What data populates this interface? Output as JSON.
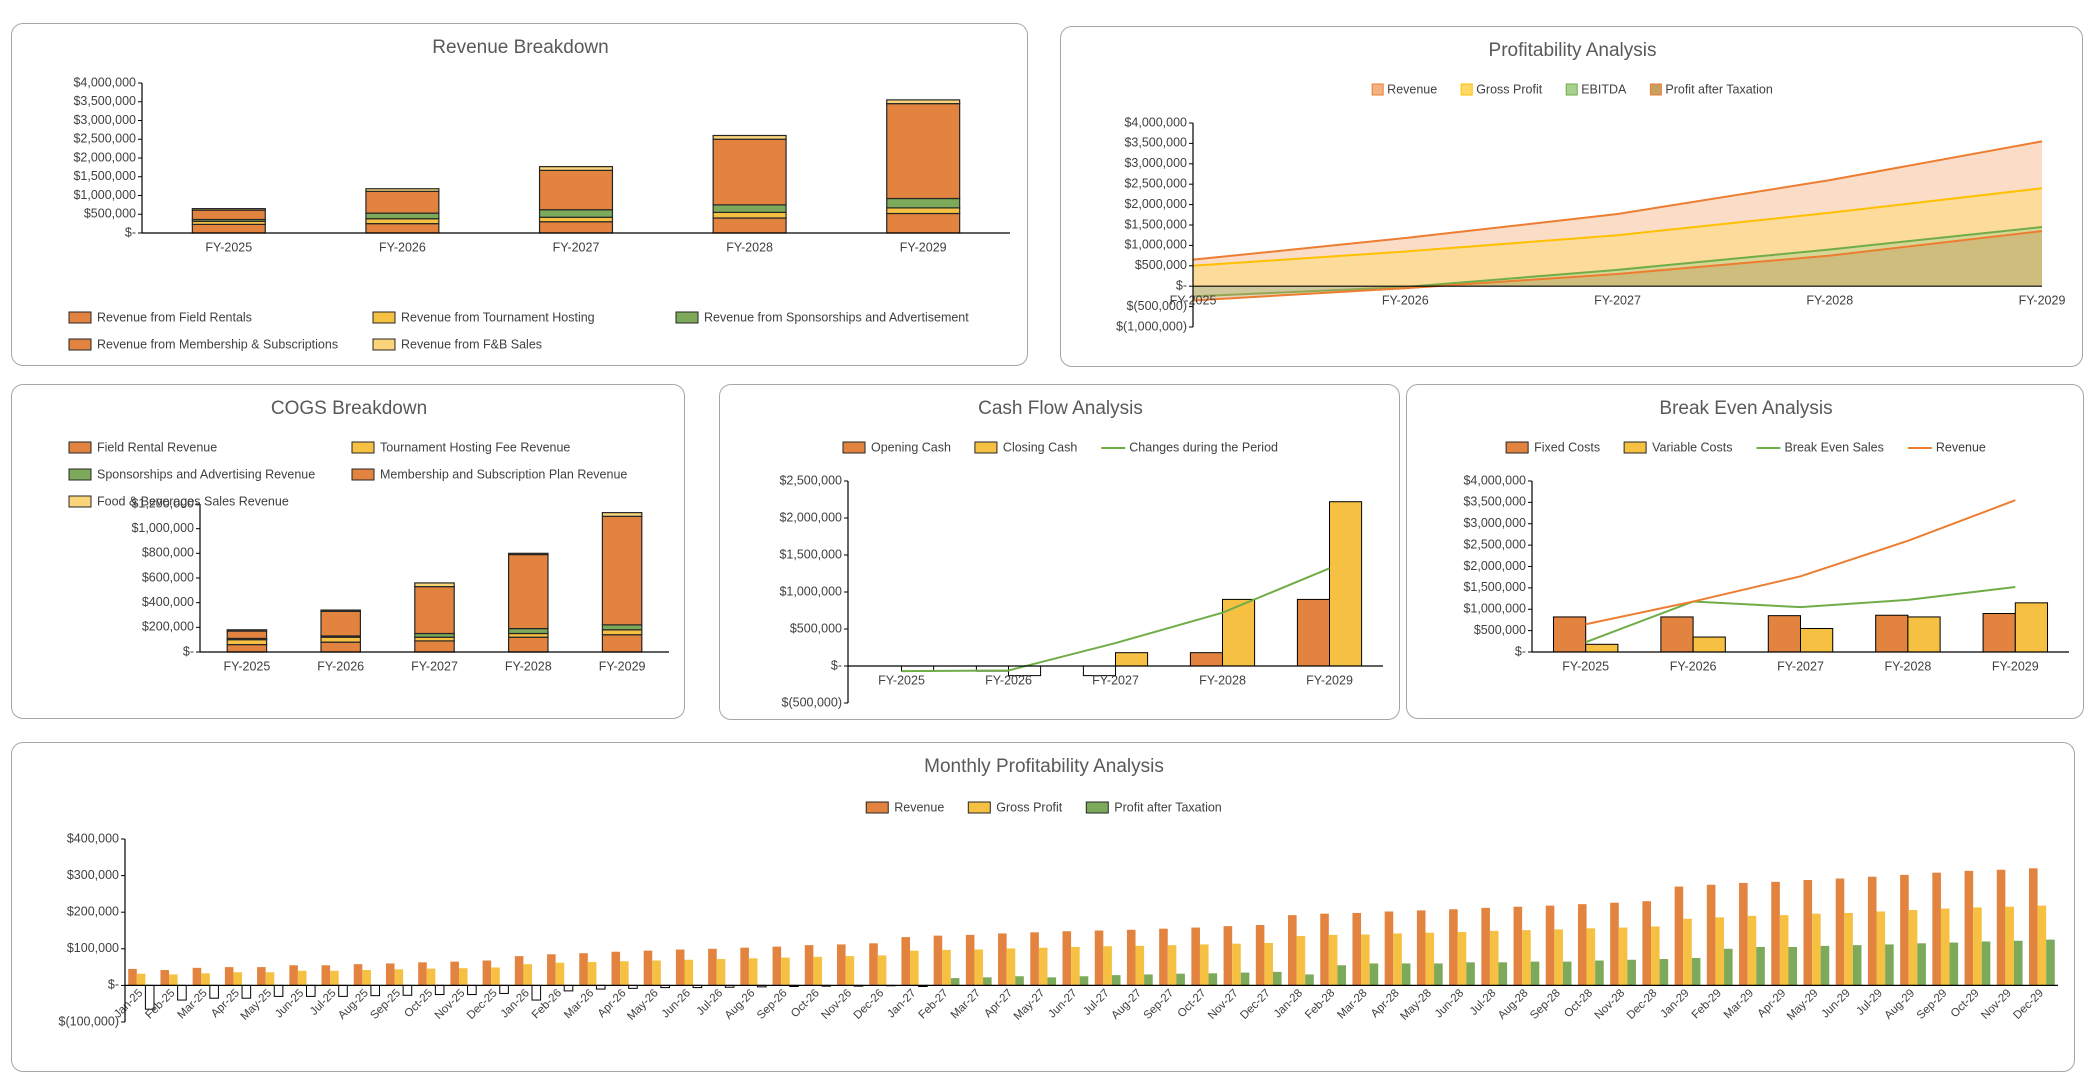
{
  "chart_data": [
    {
      "type": "bar",
      "stacked": true,
      "title": "Revenue Breakdown",
      "legend": "bottom",
      "legend_columns": 3,
      "categories": [
        "FY-2025",
        "FY-2026",
        "FY-2027",
        "FY-2028",
        "FY-2029"
      ],
      "series": [
        {
          "name": "Revenue from Field Rentals",
          "color": "#E2843F",
          "values": [
            230000,
            250000,
            300000,
            400000,
            520000
          ]
        },
        {
          "name": "Revenue from Tournament Hosting",
          "color": "#F6C143",
          "values": [
            80000,
            130000,
            120000,
            150000,
            150000
          ]
        },
        {
          "name": "Revenue from Sponsorships and Advertisement",
          "color": "#7DAA5A",
          "values": [
            50000,
            150000,
            200000,
            200000,
            250000
          ]
        },
        {
          "name": "Revenue from Membership & Subscriptions",
          "color": "#E2843F",
          "values": [
            250000,
            580000,
            1050000,
            1750000,
            2530000
          ]
        },
        {
          "name": "Revenue from F&B Sales",
          "color": "#F9D47A",
          "values": [
            40000,
            70000,
            100000,
            100000,
            100000
          ]
        }
      ],
      "ylim": [
        0,
        4000000
      ],
      "yticks": [
        {
          "value": 0,
          "label": "$-"
        },
        {
          "value": 500000,
          "label": "$500,000"
        },
        {
          "value": 1000000,
          "label": "$1,000,000"
        },
        {
          "value": 1500000,
          "label": "$1,500,000"
        },
        {
          "value": 2000000,
          "label": "$2,000,000"
        },
        {
          "value": 2500000,
          "label": "$2,500,000"
        },
        {
          "value": 3000000,
          "label": "$3,000,000"
        },
        {
          "value": 3500000,
          "label": "$3,500,000"
        },
        {
          "value": 4000000,
          "label": "$4,000,000"
        }
      ]
    },
    {
      "type": "area",
      "title": "Profitability Analysis",
      "legend": "top",
      "categories": [
        "FY-2025",
        "FY-2026",
        "FY-2027",
        "FY-2028",
        "FY-2029"
      ],
      "series": [
        {
          "name": "Revenue",
          "color": "#ED7D31",
          "fill": "#F4B183",
          "values": [
            650000,
            1180000,
            1770000,
            2600000,
            3550000
          ]
        },
        {
          "name": "Gross Profit",
          "color": "#FFC000",
          "fill": "#FFD966",
          "values": [
            500000,
            850000,
            1250000,
            1800000,
            2400000
          ]
        },
        {
          "name": "EBITDA",
          "color": "#70AD47",
          "fill": "#A9D18E",
          "values": [
            -250000,
            -20000,
            400000,
            900000,
            1450000
          ]
        },
        {
          "name": "Profit after Taxation",
          "color": "#ED7D31",
          "fill": "#C5A060",
          "values": [
            -350000,
            -50000,
            300000,
            750000,
            1350000
          ]
        }
      ],
      "ylim": [
        -1000000,
        4000000
      ],
      "yticks": [
        {
          "value": -1000000,
          "label": "$(1,000,000)"
        },
        {
          "value": -500000,
          "label": "$(500,000)"
        },
        {
          "value": 0,
          "label": "$-"
        },
        {
          "value": 500000,
          "label": "$500,000"
        },
        {
          "value": 1000000,
          "label": "$1,000,000"
        },
        {
          "value": 1500000,
          "label": "$1,500,000"
        },
        {
          "value": 2000000,
          "label": "$2,000,000"
        },
        {
          "value": 2500000,
          "label": "$2,500,000"
        },
        {
          "value": 3000000,
          "label": "$3,000,000"
        },
        {
          "value": 3500000,
          "label": "$3,500,000"
        },
        {
          "value": 4000000,
          "label": "$4,000,000"
        }
      ]
    },
    {
      "type": "bar",
      "stacked": true,
      "title": "COGS Breakdown",
      "legend": "top",
      "legend_columns": 2,
      "categories": [
        "FY-2025",
        "FY-2026",
        "FY-2027",
        "FY-2028",
        "FY-2029"
      ],
      "series": [
        {
          "name": "Field Rental Revenue",
          "color": "#E2843F",
          "values": [
            60000,
            80000,
            90000,
            120000,
            140000
          ]
        },
        {
          "name": "Tournament Hosting Fee Revenue",
          "color": "#F6C143",
          "values": [
            40000,
            40000,
            30000,
            30000,
            40000
          ]
        },
        {
          "name": "Sponsorships and Advertising Revenue",
          "color": "#7DAA5A",
          "values": [
            10000,
            10000,
            30000,
            40000,
            40000
          ]
        },
        {
          "name": "Membership and Subscription Plan Revenue",
          "color": "#E2843F",
          "values": [
            60000,
            200000,
            380000,
            600000,
            880000
          ]
        },
        {
          "name": "Food & Beverages Sales Revenue",
          "color": "#F9D47A",
          "values": [
            10000,
            10000,
            30000,
            10000,
            30000
          ]
        }
      ],
      "ylim": [
        0,
        1200000
      ],
      "yticks": [
        {
          "value": 0,
          "label": "$-"
        },
        {
          "value": 200000,
          "label": "$200,000"
        },
        {
          "value": 400000,
          "label": "$400,000"
        },
        {
          "value": 600000,
          "label": "$600,000"
        },
        {
          "value": 800000,
          "label": "$800,000"
        },
        {
          "value": 1000000,
          "label": "$1,000,000"
        },
        {
          "value": 1200000,
          "label": "$1,200,000"
        }
      ]
    },
    {
      "type": "combo",
      "title": "Cash Flow Analysis",
      "legend": "top",
      "invert_negative": true,
      "categories": [
        "FY-2025",
        "FY-2026",
        "FY-2027",
        "FY-2028",
        "FY-2029"
      ],
      "series": [
        {
          "name": "Opening Cash",
          "kind": "bar",
          "color": "#E2843F",
          "values": [
            0,
            -70000,
            -130000,
            180000,
            900000
          ]
        },
        {
          "name": "Closing Cash",
          "kind": "bar",
          "color": "#F6C143",
          "values": [
            -70000,
            -130000,
            180000,
            900000,
            2220000
          ]
        },
        {
          "name": "Changes during the Period",
          "kind": "line",
          "color": "#70AD47",
          "values": [
            -70000,
            -60000,
            310000,
            720000,
            1320000
          ]
        }
      ],
      "ylim": [
        -500000,
        2500000
      ],
      "yticks": [
        {
          "value": -500000,
          "label": "$(500,000)"
        },
        {
          "value": 0,
          "label": "$-"
        },
        {
          "value": 500000,
          "label": "$500,000"
        },
        {
          "value": 1000000,
          "label": "$1,000,000"
        },
        {
          "value": 1500000,
          "label": "$1,500,000"
        },
        {
          "value": 2000000,
          "label": "$2,000,000"
        },
        {
          "value": 2500000,
          "label": "$2,500,000"
        }
      ]
    },
    {
      "type": "combo",
      "title": "Break Even Analysis",
      "legend": "top",
      "categories": [
        "FY-2025",
        "FY-2026",
        "FY-2027",
        "FY-2028",
        "FY-2029"
      ],
      "series": [
        {
          "name": "Fixed Costs",
          "kind": "bar",
          "color": "#E2843F",
          "values": [
            820000,
            820000,
            850000,
            860000,
            900000
          ]
        },
        {
          "name": "Variable Costs",
          "kind": "bar",
          "color": "#F6C143",
          "values": [
            180000,
            350000,
            550000,
            820000,
            1150000
          ]
        },
        {
          "name": "Break Even Sales",
          "kind": "line",
          "color": "#70AD47",
          "values": [
            230000,
            1180000,
            1050000,
            1220000,
            1520000
          ]
        },
        {
          "name": "Revenue",
          "kind": "line",
          "color": "#ED7D31",
          "values": [
            650000,
            1180000,
            1770000,
            2600000,
            3550000
          ]
        }
      ],
      "ylim": [
        0,
        4000000
      ],
      "yticks": [
        {
          "value": 0,
          "label": "$-"
        },
        {
          "value": 500000,
          "label": "$500,000"
        },
        {
          "value": 1000000,
          "label": "$1,000,000"
        },
        {
          "value": 1500000,
          "label": "$1,500,000"
        },
        {
          "value": 2000000,
          "label": "$2,000,000"
        },
        {
          "value": 2500000,
          "label": "$2,500,000"
        },
        {
          "value": 3000000,
          "label": "$3,000,000"
        },
        {
          "value": 3500000,
          "label": "$3,500,000"
        },
        {
          "value": 4000000,
          "label": "$4,000,000"
        }
      ]
    },
    {
      "type": "bar",
      "stacked": false,
      "title": "Monthly Profitability Analysis",
      "legend": "top",
      "invert_negative": true,
      "x_label_rotation": -45,
      "categories": [
        "Jan-25",
        "Feb-25",
        "Mar-25",
        "Apr-25",
        "May-25",
        "Jun-25",
        "Jul-25",
        "Aug-25",
        "Sep-25",
        "Oct-25",
        "Nov-25",
        "Dec-25",
        "Jan-26",
        "Feb-26",
        "Mar-26",
        "Apr-26",
        "May-26",
        "Jun-26",
        "Jul-26",
        "Aug-26",
        "Sep-26",
        "Oct-26",
        "Nov-26",
        "Dec-26",
        "Jan-27",
        "Feb-27",
        "Mar-27",
        "Apr-27",
        "May-27",
        "Jun-27",
        "Jul-27",
        "Aug-27",
        "Sep-27",
        "Oct-27",
        "Nov-27",
        "Dec-27",
        "Jan-28",
        "Feb-28",
        "Mar-28",
        "Apr-28",
        "May-28",
        "Jun-28",
        "Jul-28",
        "Aug-28",
        "Sep-28",
        "Oct-28",
        "Nov-28",
        "Dec-28",
        "Jan-29",
        "Feb-29",
        "Mar-29",
        "Apr-29",
        "May-29",
        "Jun-29",
        "Jul-29",
        "Aug-29",
        "Sep-29",
        "Oct-29",
        "Nov-29",
        "Dec-29"
      ],
      "series": [
        {
          "name": "Revenue",
          "color": "#E2843F",
          "values": [
            45000,
            42000,
            48000,
            50000,
            50000,
            55000,
            55000,
            58000,
            60000,
            63000,
            65000,
            68000,
            80000,
            85000,
            88000,
            92000,
            95000,
            98000,
            100000,
            103000,
            106000,
            110000,
            112000,
            115000,
            132000,
            136000,
            138000,
            142000,
            145000,
            148000,
            150000,
            152000,
            155000,
            158000,
            162000,
            165000,
            192000,
            196000,
            198000,
            202000,
            205000,
            208000,
            212000,
            215000,
            218000,
            222000,
            226000,
            230000,
            270000,
            275000,
            280000,
            283000,
            288000,
            292000,
            297000,
            302000,
            308000,
            313000,
            316000,
            320000
          ]
        },
        {
          "name": "Gross Profit",
          "color": "#F6C143",
          "values": [
            32000,
            30000,
            33000,
            36000,
            36000,
            40000,
            40000,
            42000,
            44000,
            46000,
            47000,
            49000,
            58000,
            62000,
            64000,
            66000,
            68000,
            70000,
            72000,
            74000,
            76000,
            78000,
            80000,
            82000,
            95000,
            97000,
            98000,
            101000,
            103000,
            105000,
            107000,
            108000,
            110000,
            112000,
            114000,
            116000,
            135000,
            138000,
            139000,
            142000,
            144000,
            146000,
            149000,
            151000,
            153000,
            156000,
            158000,
            161000,
            182000,
            186000,
            190000,
            192000,
            196000,
            198000,
            202000,
            206000,
            210000,
            213000,
            215000,
            218000
          ]
        },
        {
          "name": "Profit after Taxation",
          "color": "#7DAA5A",
          "values": [
            -65000,
            -40000,
            -35000,
            -35000,
            -30000,
            -30000,
            -30000,
            -28000,
            -27000,
            -25000,
            -25000,
            -22000,
            -40000,
            -15000,
            -10000,
            -8000,
            -6000,
            -6000,
            -5000,
            -4000,
            -3000,
            -2000,
            -2000,
            -1000,
            -3000,
            20000,
            22000,
            25000,
            22000,
            25000,
            28000,
            30000,
            32000,
            33000,
            35000,
            37000,
            30000,
            55000,
            60000,
            60000,
            60000,
            63000,
            63000,
            65000,
            65000,
            68000,
            70000,
            72000,
            75000,
            100000,
            105000,
            105000,
            108000,
            110000,
            112000,
            115000,
            117000,
            120000,
            122000,
            125000
          ]
        }
      ],
      "ylim": [
        -100000,
        400000
      ],
      "yticks": [
        {
          "value": -100000,
          "label": "$(100,000)"
        },
        {
          "value": 0,
          "label": "$-"
        },
        {
          "value": 100000,
          "label": "$100,000"
        },
        {
          "value": 200000,
          "label": "$200,000"
        },
        {
          "value": 300000,
          "label": "$300,000"
        },
        {
          "value": 400000,
          "label": "$400,000"
        }
      ]
    }
  ]
}
